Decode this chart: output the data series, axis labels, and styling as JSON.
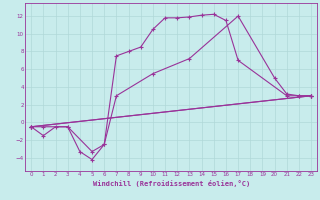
{
  "bg_color": "#c8ecec",
  "grid_color": "#b0d8d8",
  "line_color": "#993399",
  "line_width": 0.8,
  "markersize": 3,
  "xlabel": "Windchill (Refroidissement éolien,°C)",
  "xlim": [
    -0.5,
    23.5
  ],
  "ylim": [
    -5.5,
    13.5
  ],
  "xticks": [
    0,
    1,
    2,
    3,
    4,
    5,
    6,
    7,
    8,
    9,
    10,
    11,
    12,
    13,
    14,
    15,
    16,
    17,
    18,
    19,
    20,
    21,
    22,
    23
  ],
  "yticks": [
    -4,
    -2,
    0,
    2,
    4,
    6,
    8,
    10,
    12
  ],
  "line1_x": [
    0,
    1,
    2,
    3,
    4,
    5,
    6,
    7,
    8,
    9,
    10,
    11,
    12,
    13,
    14,
    15,
    16,
    17,
    21,
    22,
    23
  ],
  "line1_y": [
    -0.5,
    -1.5,
    -0.5,
    -0.5,
    -3.3,
    -4.2,
    -2.5,
    7.5,
    8.0,
    8.5,
    10.5,
    11.8,
    11.8,
    11.9,
    12.1,
    12.2,
    11.5,
    7.0,
    3.0,
    3.0,
    3.0
  ],
  "line2_x": [
    0,
    1,
    3,
    5,
    6,
    7,
    10,
    13,
    17,
    20,
    21,
    22,
    23
  ],
  "line2_y": [
    -0.5,
    -0.5,
    -0.5,
    -3.3,
    -2.5,
    3.0,
    5.5,
    7.2,
    12.0,
    5.0,
    3.2,
    3.0,
    3.0
  ],
  "line3_x": [
    0,
    23
  ],
  "line3_y": [
    -0.5,
    3.0
  ],
  "line4_x": [
    0,
    23
  ],
  "line4_y": [
    -0.5,
    3.0
  ]
}
